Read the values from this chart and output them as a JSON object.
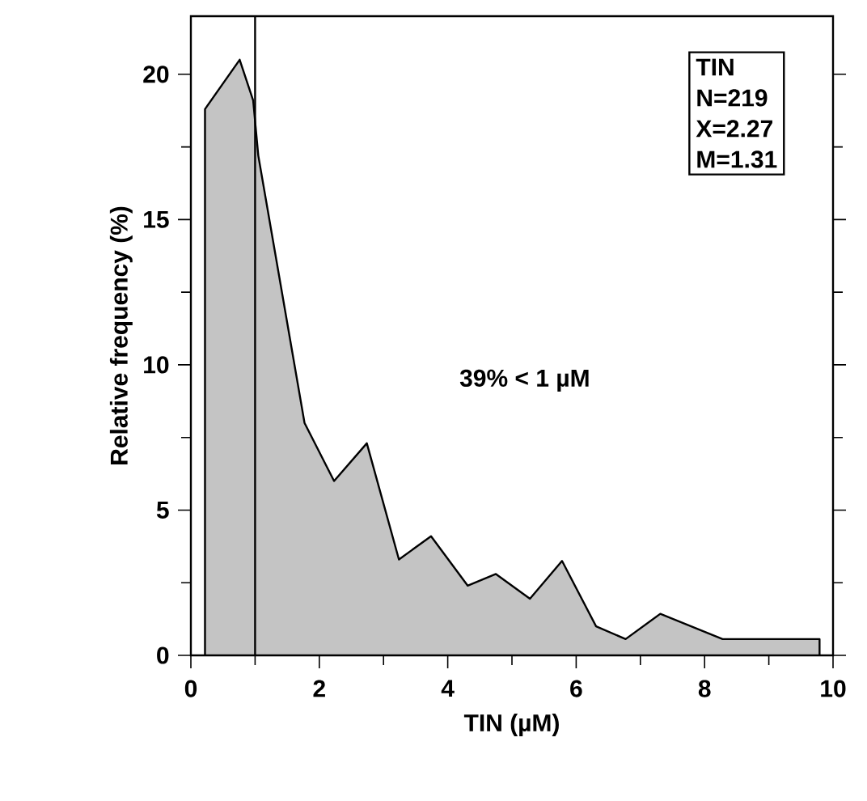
{
  "chart_data": {
    "type": "area",
    "xlabel": "TIN  (µM)",
    "ylabel": "Relative  frequency  (%)",
    "x": [
      0.22,
      0.76,
      0.97,
      1.05,
      1.77,
      2.23,
      2.74,
      3.24,
      3.74,
      4.31,
      4.75,
      5.28,
      5.78,
      6.31,
      6.77,
      7.31,
      8.28,
      9.79
    ],
    "series": [
      {
        "color": "#c4c4c4",
        "values": [
          18.8,
          20.5,
          19.1,
          17.2,
          8.0,
          6.0,
          7.3,
          3.3,
          4.1,
          2.4,
          2.8,
          1.95,
          3.25,
          1.0,
          0.56,
          1.43,
          0.56,
          0.56
        ]
      }
    ],
    "xlim": [
      0,
      10
    ],
    "ylim": [
      0,
      22
    ],
    "xticks": [
      0,
      2,
      4,
      6,
      8,
      10
    ],
    "yticks": [
      0,
      5,
      10,
      15,
      20
    ],
    "ref_lines": [
      {
        "axis": "x",
        "value": 1
      }
    ],
    "annotations": [
      "TIN",
      "N=219",
      "X=2.27",
      "M=1.31",
      "39%  <  1  µM"
    ],
    "grid": false
  }
}
